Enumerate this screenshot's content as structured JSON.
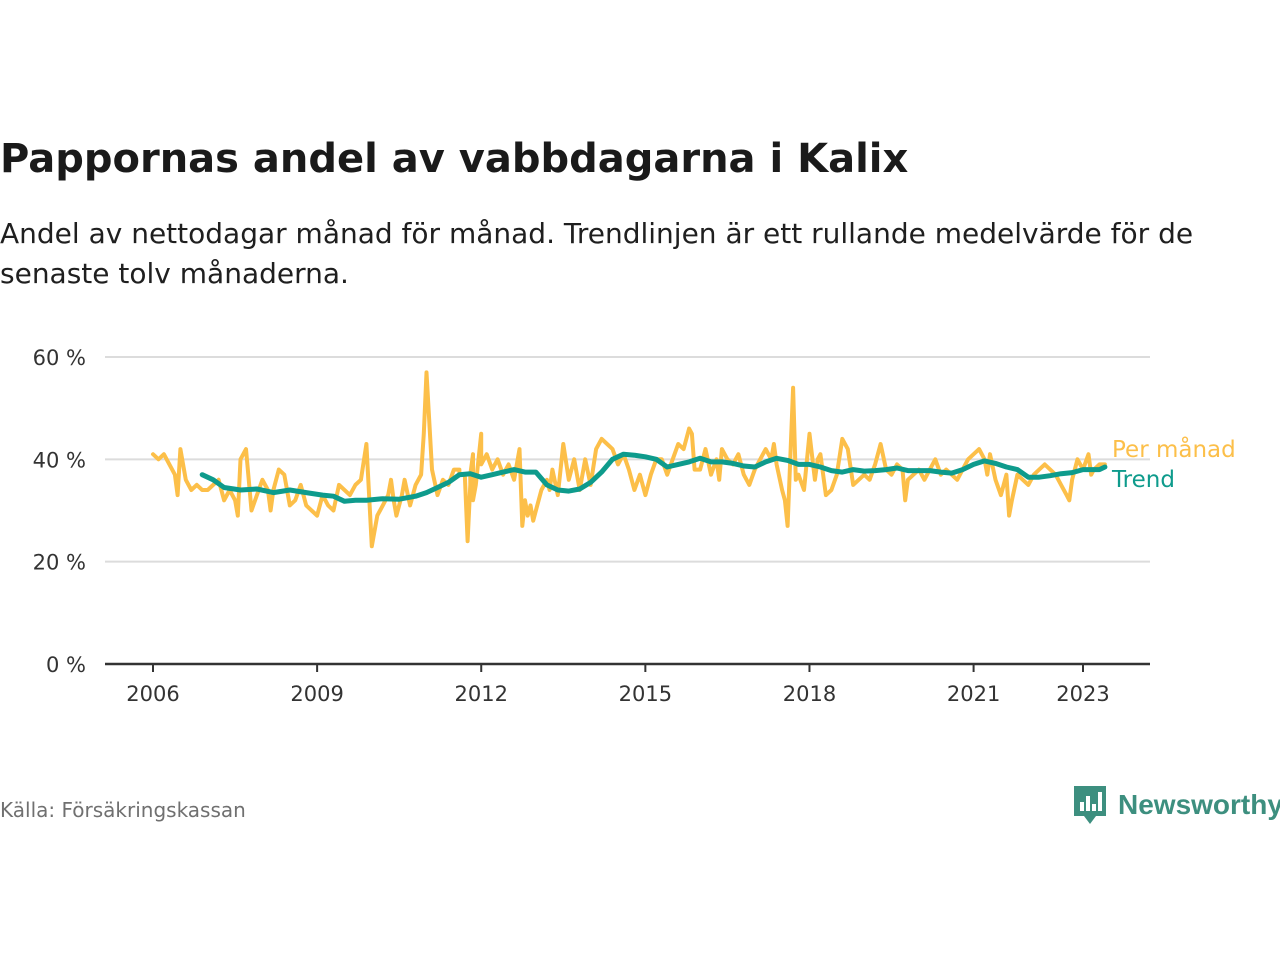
{
  "title": "Pappornas andel av vabbdagarna i Kalix",
  "subtitle": "Andel av nettodagar månad för månad. Trendlinjen är ett rullande medelvärde för de senaste tolv månaderna.",
  "source": "Källa: Försäkringskassan",
  "brand": "Newsworthy",
  "colors": {
    "monthly": "#fcbf49",
    "trend": "#0e9b8c",
    "grid": "#dcdcdc",
    "axis": "#333333",
    "brand": "#3d8f7f"
  },
  "chart_data": {
    "type": "line",
    "x_unit": "year (decimal)",
    "ylim": [
      0,
      60
    ],
    "xlim": [
      2006,
      2023.5
    ],
    "grid": true,
    "y_ticks": [
      {
        "value": 0,
        "label": "0 %"
      },
      {
        "value": 20,
        "label": "20 %"
      },
      {
        "value": 40,
        "label": "40 %"
      },
      {
        "value": 60,
        "label": "60 %"
      }
    ],
    "x_ticks": [
      {
        "value": 2006,
        "label": "2006"
      },
      {
        "value": 2009,
        "label": "2009"
      },
      {
        "value": 2012,
        "label": "2012"
      },
      {
        "value": 2015,
        "label": "2015"
      },
      {
        "value": 2018,
        "label": "2018"
      },
      {
        "value": 2021,
        "label": "2021"
      },
      {
        "value": 2023,
        "label": "2023"
      }
    ],
    "series": [
      {
        "name": "Per månad",
        "color": "#fcbf49",
        "points": [
          [
            2006.0,
            41
          ],
          [
            2006.1,
            40
          ],
          [
            2006.2,
            41
          ],
          [
            2006.3,
            39
          ],
          [
            2006.4,
            37
          ],
          [
            2006.45,
            33
          ],
          [
            2006.5,
            42
          ],
          [
            2006.6,
            36
          ],
          [
            2006.7,
            34
          ],
          [
            2006.8,
            35
          ],
          [
            2006.9,
            34
          ],
          [
            2007.0,
            34
          ],
          [
            2007.1,
            35
          ],
          [
            2007.2,
            36
          ],
          [
            2007.3,
            32
          ],
          [
            2007.4,
            34
          ],
          [
            2007.5,
            32
          ],
          [
            2007.55,
            29
          ],
          [
            2007.6,
            40
          ],
          [
            2007.7,
            42
          ],
          [
            2007.8,
            30
          ],
          [
            2007.9,
            33
          ],
          [
            2008.0,
            36
          ],
          [
            2008.1,
            34
          ],
          [
            2008.15,
            30
          ],
          [
            2008.2,
            34
          ],
          [
            2008.3,
            38
          ],
          [
            2008.4,
            37
          ],
          [
            2008.5,
            31
          ],
          [
            2008.6,
            32
          ],
          [
            2008.7,
            35
          ],
          [
            2008.8,
            31
          ],
          [
            2008.9,
            30
          ],
          [
            2009.0,
            29
          ],
          [
            2009.1,
            33
          ],
          [
            2009.2,
            31
          ],
          [
            2009.3,
            30
          ],
          [
            2009.4,
            35
          ],
          [
            2009.5,
            34
          ],
          [
            2009.6,
            33
          ],
          [
            2009.7,
            35
          ],
          [
            2009.8,
            36
          ],
          [
            2009.9,
            43
          ],
          [
            2010.0,
            23
          ],
          [
            2010.1,
            29
          ],
          [
            2010.2,
            31
          ],
          [
            2010.3,
            33
          ],
          [
            2010.35,
            36
          ],
          [
            2010.4,
            32
          ],
          [
            2010.45,
            29
          ],
          [
            2010.55,
            33
          ],
          [
            2010.6,
            36
          ],
          [
            2010.7,
            31
          ],
          [
            2010.8,
            35
          ],
          [
            2010.9,
            37
          ],
          [
            2010.95,
            45
          ],
          [
            2011.0,
            57
          ],
          [
            2011.1,
            38
          ],
          [
            2011.2,
            33
          ],
          [
            2011.3,
            36
          ],
          [
            2011.4,
            35
          ],
          [
            2011.5,
            38
          ],
          [
            2011.6,
            38
          ],
          [
            2011.7,
            37
          ],
          [
            2011.8,
            35
          ],
          [
            2011.85,
            41
          ],
          [
            2011.9,
            35
          ],
          [
            2012.0,
            45
          ],
          [
            2011.6,
            37
          ],
          [
            2011.7,
            37
          ],
          [
            2011.75,
            24
          ],
          [
            2011.8,
            37
          ],
          [
            2011.85,
            32
          ],
          [
            2012.0,
            39
          ],
          [
            2012.1,
            41
          ],
          [
            2012.2,
            38
          ],
          [
            2012.3,
            40
          ],
          [
            2012.4,
            37
          ],
          [
            2012.5,
            39
          ],
          [
            2012.6,
            36
          ],
          [
            2012.7,
            42
          ],
          [
            2012.75,
            27
          ],
          [
            2012.8,
            32
          ],
          [
            2012.85,
            29
          ],
          [
            2012.9,
            31
          ],
          [
            2012.95,
            28
          ],
          [
            2013.0,
            30
          ],
          [
            2013.1,
            34
          ],
          [
            2013.2,
            36
          ],
          [
            2013.25,
            34
          ],
          [
            2013.3,
            38
          ],
          [
            2013.4,
            33
          ],
          [
            2013.5,
            43
          ],
          [
            2013.6,
            36
          ],
          [
            2013.7,
            40
          ],
          [
            2013.8,
            34
          ],
          [
            2013.9,
            40
          ],
          [
            2014.0,
            35
          ],
          [
            2014.1,
            42
          ],
          [
            2014.2,
            44
          ],
          [
            2014.3,
            43
          ],
          [
            2014.4,
            42
          ],
          [
            2014.5,
            39
          ],
          [
            2014.6,
            41
          ],
          [
            2014.7,
            38
          ],
          [
            2014.8,
            34
          ],
          [
            2014.9,
            37
          ],
          [
            2015.0,
            33
          ],
          [
            2015.1,
            37
          ],
          [
            2015.2,
            40
          ],
          [
            2015.3,
            40
          ],
          [
            2015.4,
            37
          ],
          [
            2015.5,
            40
          ],
          [
            2015.6,
            43
          ],
          [
            2015.7,
            42
          ],
          [
            2015.8,
            46
          ],
          [
            2015.85,
            45
          ],
          [
            2015.9,
            38
          ],
          [
            2016.0,
            38
          ],
          [
            2016.1,
            42
          ],
          [
            2016.2,
            37
          ],
          [
            2016.3,
            40
          ],
          [
            2016.35,
            36
          ],
          [
            2016.4,
            42
          ],
          [
            2016.5,
            40
          ],
          [
            2016.6,
            39
          ],
          [
            2016.7,
            41
          ],
          [
            2016.8,
            37
          ],
          [
            2016.9,
            35
          ],
          [
            2017.0,
            38
          ],
          [
            2017.1,
            40
          ],
          [
            2017.2,
            42
          ],
          [
            2017.3,
            40
          ],
          [
            2017.35,
            43
          ],
          [
            2017.4,
            39
          ],
          [
            2017.5,
            34
          ],
          [
            2017.55,
            32
          ],
          [
            2017.6,
            27
          ],
          [
            2017.7,
            54
          ],
          [
            2017.75,
            36
          ],
          [
            2017.8,
            37
          ],
          [
            2017.9,
            34
          ],
          [
            2018.0,
            45
          ],
          [
            2018.1,
            36
          ],
          [
            2018.15,
            40
          ],
          [
            2018.2,
            41
          ],
          [
            2018.3,
            33
          ],
          [
            2018.4,
            34
          ],
          [
            2018.5,
            37
          ],
          [
            2018.6,
            44
          ],
          [
            2018.7,
            42
          ],
          [
            2018.8,
            35
          ],
          [
            2018.9,
            36
          ],
          [
            2019.0,
            37
          ],
          [
            2019.1,
            36
          ],
          [
            2019.2,
            39
          ],
          [
            2019.3,
            43
          ],
          [
            2019.4,
            38
          ],
          [
            2019.5,
            37
          ],
          [
            2019.6,
            39
          ],
          [
            2019.7,
            38
          ],
          [
            2019.75,
            32
          ],
          [
            2019.8,
            36
          ],
          [
            2019.9,
            37
          ],
          [
            2020.0,
            38
          ],
          [
            2020.1,
            36
          ],
          [
            2020.2,
            38
          ],
          [
            2020.3,
            40
          ],
          [
            2020.4,
            37
          ],
          [
            2020.5,
            38
          ],
          [
            2020.6,
            37
          ],
          [
            2020.7,
            36
          ],
          [
            2020.8,
            38
          ],
          [
            2020.9,
            40
          ],
          [
            2021.0,
            41
          ],
          [
            2021.1,
            42
          ],
          [
            2021.2,
            40
          ],
          [
            2021.25,
            37
          ],
          [
            2021.3,
            41
          ],
          [
            2021.4,
            36
          ],
          [
            2021.5,
            33
          ],
          [
            2021.6,
            37
          ],
          [
            2021.65,
            29
          ],
          [
            2021.7,
            32
          ],
          [
            2021.8,
            37
          ],
          [
            2021.9,
            36
          ],
          [
            2022.0,
            35
          ],
          [
            2022.1,
            37
          ],
          [
            2022.2,
            38
          ],
          [
            2022.3,
            39
          ],
          [
            2022.4,
            38
          ],
          [
            2022.5,
            37
          ],
          [
            2022.6,
            35
          ],
          [
            2022.7,
            33
          ],
          [
            2022.75,
            32
          ],
          [
            2022.8,
            36
          ],
          [
            2022.9,
            40
          ],
          [
            2023.0,
            38
          ],
          [
            2023.1,
            41
          ],
          [
            2023.15,
            37
          ],
          [
            2023.2,
            38
          ],
          [
            2023.3,
            39
          ],
          [
            2023.4,
            39
          ]
        ]
      },
      {
        "name": "Trend",
        "color": "#0e9b8c",
        "points": [
          [
            2006.9,
            37
          ],
          [
            2007.1,
            36
          ],
          [
            2007.3,
            34.5
          ],
          [
            2007.6,
            34
          ],
          [
            2007.9,
            34.2
          ],
          [
            2008.2,
            33.5
          ],
          [
            2008.5,
            34
          ],
          [
            2008.8,
            33.5
          ],
          [
            2009.1,
            33
          ],
          [
            2009.3,
            32.8
          ],
          [
            2009.5,
            31.8
          ],
          [
            2009.7,
            32
          ],
          [
            2009.9,
            32
          ],
          [
            2010.2,
            32.3
          ],
          [
            2010.5,
            32.2
          ],
          [
            2010.8,
            32.8
          ],
          [
            2011.0,
            33.5
          ],
          [
            2011.2,
            34.5
          ],
          [
            2011.4,
            35.5
          ],
          [
            2011.6,
            37
          ],
          [
            2011.8,
            37.2
          ],
          [
            2012.0,
            36.5
          ],
          [
            2012.2,
            37
          ],
          [
            2012.4,
            37.5
          ],
          [
            2012.6,
            38
          ],
          [
            2012.8,
            37.5
          ],
          [
            2013.0,
            37.5
          ],
          [
            2013.2,
            35
          ],
          [
            2013.4,
            34
          ],
          [
            2013.6,
            33.8
          ],
          [
            2013.8,
            34.2
          ],
          [
            2014.0,
            35.5
          ],
          [
            2014.2,
            37.5
          ],
          [
            2014.4,
            40
          ],
          [
            2014.6,
            41
          ],
          [
            2014.8,
            40.8
          ],
          [
            2015.0,
            40.5
          ],
          [
            2015.2,
            40
          ],
          [
            2015.4,
            38.5
          ],
          [
            2015.6,
            39
          ],
          [
            2015.8,
            39.5
          ],
          [
            2016.0,
            40.2
          ],
          [
            2016.2,
            39.5
          ],
          [
            2016.4,
            39.5
          ],
          [
            2016.6,
            39.2
          ],
          [
            2016.8,
            38.7
          ],
          [
            2017.0,
            38.5
          ],
          [
            2017.2,
            39.5
          ],
          [
            2017.4,
            40.2
          ],
          [
            2017.6,
            39.8
          ],
          [
            2017.8,
            39
          ],
          [
            2018.0,
            39
          ],
          [
            2018.2,
            38.5
          ],
          [
            2018.4,
            37.8
          ],
          [
            2018.6,
            37.5
          ],
          [
            2018.8,
            38
          ],
          [
            2019.0,
            37.7
          ],
          [
            2019.2,
            37.8
          ],
          [
            2019.4,
            38
          ],
          [
            2019.6,
            38.3
          ],
          [
            2019.8,
            37.8
          ],
          [
            2020.0,
            37.8
          ],
          [
            2020.2,
            37.8
          ],
          [
            2020.4,
            37.5
          ],
          [
            2020.6,
            37.3
          ],
          [
            2020.8,
            38
          ],
          [
            2021.0,
            39
          ],
          [
            2021.2,
            39.7
          ],
          [
            2021.4,
            39.2
          ],
          [
            2021.6,
            38.5
          ],
          [
            2021.8,
            38
          ],
          [
            2022.0,
            36.5
          ],
          [
            2022.2,
            36.5
          ],
          [
            2022.4,
            36.8
          ],
          [
            2022.6,
            37.2
          ],
          [
            2022.8,
            37.4
          ],
          [
            2023.0,
            38
          ],
          [
            2023.2,
            38
          ],
          [
            2023.3,
            38
          ],
          [
            2023.4,
            38.5
          ]
        ]
      }
    ]
  }
}
